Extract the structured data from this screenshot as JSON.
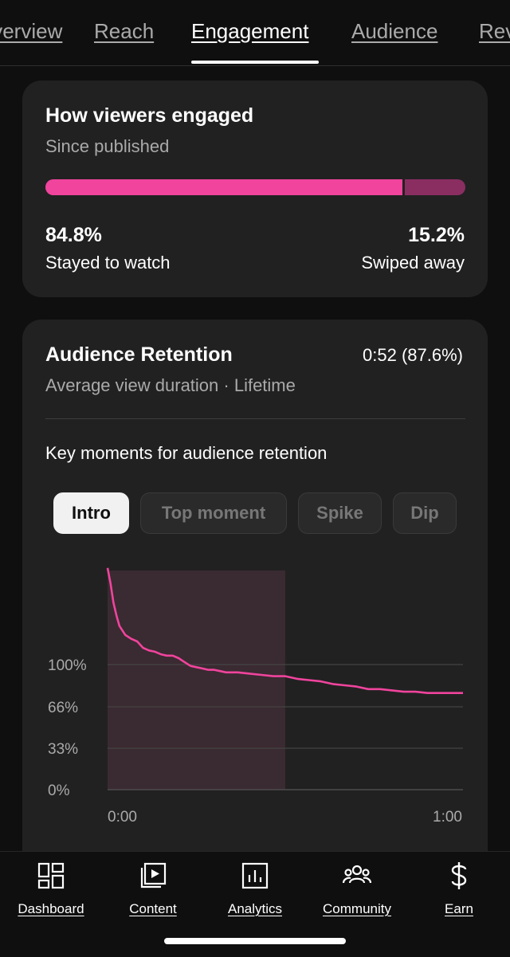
{
  "tabs": [
    {
      "label": "Overview",
      "active": false
    },
    {
      "label": "Reach",
      "active": false
    },
    {
      "label": "Engagement",
      "active": true
    },
    {
      "label": "Audience",
      "active": false
    },
    {
      "label": "Revenue",
      "active": false
    }
  ],
  "engagement_card": {
    "title": "How viewers engaged",
    "subtitle": "Since published",
    "stayed_value": "84.8%",
    "stayed_label": "Stayed to watch",
    "swiped_value": "15.2%",
    "swiped_label": "Swiped away",
    "stayed_fraction": 0.848,
    "colors": {
      "stayed": "#f0449d",
      "swiped": "#8a2e62"
    }
  },
  "retention_card": {
    "title": "Audience Retention",
    "value": "0:52 (87.6%)",
    "subtitle": "Average view duration · Lifetime",
    "key_moments_label": "Key moments for audience retention",
    "chips": [
      {
        "label": "Intro",
        "active": true
      },
      {
        "label": "Top moment",
        "active": false
      },
      {
        "label": "Spike",
        "active": false
      },
      {
        "label": "Dip",
        "active": false
      }
    ]
  },
  "chart_data": {
    "type": "line",
    "y_ticks": [
      "100%",
      "66%",
      "33%",
      "0%"
    ],
    "x_ticks": [
      "0:00",
      "1:00"
    ],
    "xlim": [
      0,
      60
    ],
    "ylim": [
      0,
      170
    ],
    "highlight_range": [
      0,
      30
    ],
    "line_color": "#f0449d",
    "highlight_color": "#3a2a31",
    "series": [
      {
        "x": [
          0,
          0.5,
          1,
          1.5,
          2,
          3,
          4,
          5,
          6,
          7,
          8,
          9,
          10,
          11,
          12,
          13,
          14,
          15,
          16,
          17,
          18,
          19,
          20,
          22,
          24,
          26,
          28,
          30,
          32,
          34,
          36,
          38,
          40,
          42,
          44,
          46,
          48,
          50,
          52,
          54,
          56,
          58,
          60
        ],
        "y": [
          172,
          160,
          145,
          135,
          127,
          120,
          117,
          115,
          110,
          108,
          107,
          105,
          104,
          104,
          102,
          99,
          96,
          95,
          94,
          93,
          93,
          92,
          91,
          91,
          90,
          89,
          88,
          88,
          86,
          85,
          84,
          82,
          81,
          80,
          78,
          78,
          77,
          76,
          76,
          75,
          75,
          75,
          75
        ]
      }
    ]
  },
  "bottom_nav": [
    {
      "label": "Dashboard",
      "icon": "dashboard-icon"
    },
    {
      "label": "Content",
      "icon": "content-icon"
    },
    {
      "label": "Analytics",
      "icon": "analytics-icon"
    },
    {
      "label": "Community",
      "icon": "community-icon"
    },
    {
      "label": "Earn",
      "icon": "earn-icon"
    }
  ]
}
